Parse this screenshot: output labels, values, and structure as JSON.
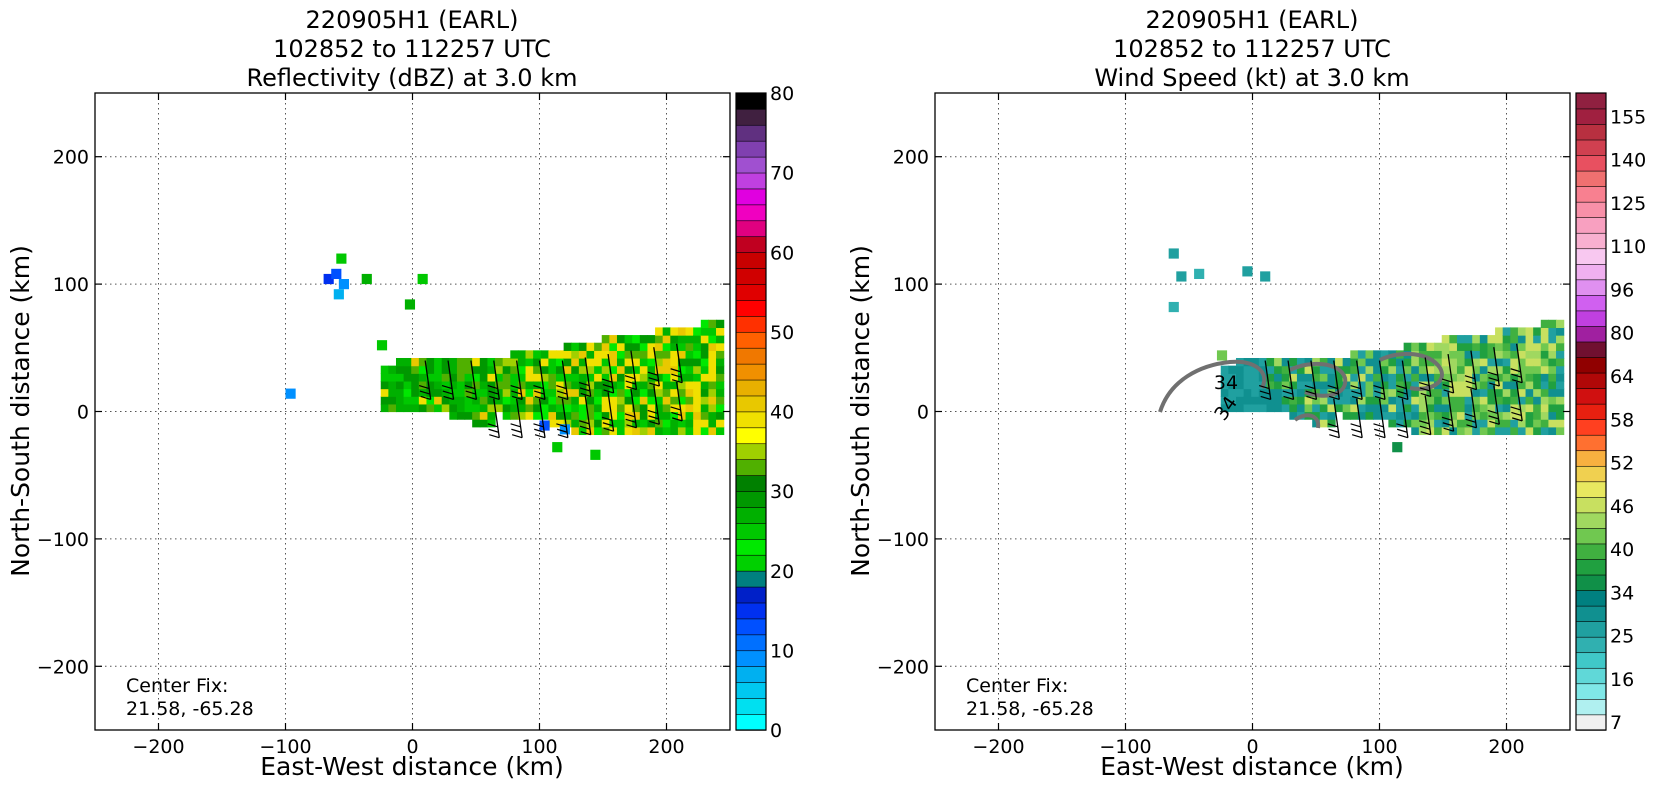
{
  "panels": [
    {
      "title_line1": "220905H1 (EARL)",
      "title_line2": "102852 to 112257 UTC",
      "title_line3": "Reflectivity (dBZ) at 3.0 km",
      "xlabel": "East-West distance (km)",
      "ylabel": "North-South distance (km)",
      "center_fix_label": "Center Fix:",
      "center_fix_value": "21.58, -65.28",
      "colorbar_ticks": [
        "0",
        "10",
        "20",
        "30",
        "40",
        "50",
        "60",
        "70",
        "80"
      ]
    },
    {
      "title_line1": "220905H1 (EARL)",
      "title_line2": "102852 to 112257 UTC",
      "title_line3": "Wind Speed (kt) at 3.0 km",
      "xlabel": "East-West distance (km)",
      "ylabel": "North-South distance (km)",
      "center_fix_label": "Center Fix:",
      "center_fix_value": "21.58, -65.28",
      "colorbar_ticks": [
        "7",
        "16",
        "25",
        "34",
        "40",
        "46",
        "52",
        "58",
        "64",
        "80",
        "96",
        "110",
        "125",
        "140",
        "155"
      ],
      "contour_labels": [
        "34",
        "34"
      ]
    }
  ],
  "chart_data": [
    {
      "type": "heatmap",
      "title": "220905H1 (EARL) 102852 to 112257 UTC Reflectivity (dBZ) at 3.0 km",
      "xlabel": "East-West distance (km)",
      "ylabel": "North-South distance (km)",
      "xlim": [
        -250,
        250
      ],
      "ylim": [
        -250,
        250
      ],
      "xticks": [
        -200,
        -100,
        0,
        100,
        200
      ],
      "yticks": [
        -200,
        -100,
        0,
        100,
        200
      ],
      "grid": true,
      "colorbar": {
        "range": [
          0,
          80
        ],
        "ticks": [
          0,
          10,
          20,
          30,
          40,
          50,
          60,
          70,
          80
        ],
        "colors": [
          "#00ffff",
          "#00e0f0",
          "#00c8f0",
          "#00b0f0",
          "#0090ff",
          "#0070ff",
          "#0050ff",
          "#0030f0",
          "#0020c8",
          "#008080",
          "#00d000",
          "#00e800",
          "#00c800",
          "#00b000",
          "#009800",
          "#008000",
          "#50b000",
          "#a0d000",
          "#ffff00",
          "#f0e000",
          "#e8c800",
          "#e8b000",
          "#f09000",
          "#f07800",
          "#ff6000",
          "#ff3000",
          "#ff0000",
          "#e00000",
          "#d00000",
          "#c80000",
          "#c00020",
          "#e00080",
          "#f000c0",
          "#e000e0",
          "#c040e0",
          "#a050d0",
          "#8040b0",
          "#603080",
          "#402040",
          "#000000"
        ]
      },
      "center_fix": [
        21.58,
        -65.28
      ],
      "data_extent_note_visible": false
    },
    {
      "type": "heatmap",
      "title": "220905H1 (EARL) 102852 to 112257 UTC Wind Speed (kt) at 3.0 km",
      "xlabel": "East-West distance (km)",
      "ylabel": "North-South distance (km)",
      "xlim": [
        -250,
        250
      ],
      "ylim": [
        -250,
        250
      ],
      "xticks": [
        -200,
        -100,
        0,
        100,
        200
      ],
      "yticks": [
        -200,
        -100,
        0,
        100,
        200
      ],
      "grid": true,
      "colorbar": {
        "ticks": [
          7,
          16,
          25,
          34,
          40,
          46,
          52,
          58,
          64,
          80,
          96,
          110,
          125,
          140,
          155
        ],
        "colors": [
          "#f0f0f0",
          "#b0f0f0",
          "#80e8e8",
          "#60d8d8",
          "#40c8c8",
          "#30b0b0",
          "#20a0a0",
          "#109090",
          "#008080",
          "#109048",
          "#20a040",
          "#40b040",
          "#70c850",
          "#a0d860",
          "#c8e060",
          "#e8e860",
          "#f0d050",
          "#f8b040",
          "#ff7030",
          "#ff4020",
          "#e82010",
          "#d01010",
          "#b00808",
          "#900000",
          "#701030",
          "#a020a0",
          "#c040e0",
          "#d060f0",
          "#e090f0",
          "#f0b0f0",
          "#f8c8f0",
          "#f8b0d0",
          "#f8a0c0",
          "#f890a8",
          "#f88090",
          "#f07070",
          "#e85060",
          "#d04050",
          "#b83040",
          "#a02040",
          "#902040"
        ]
      },
      "contour_level": 34,
      "center_fix": [
        21.58,
        -65.28
      ]
    }
  ]
}
